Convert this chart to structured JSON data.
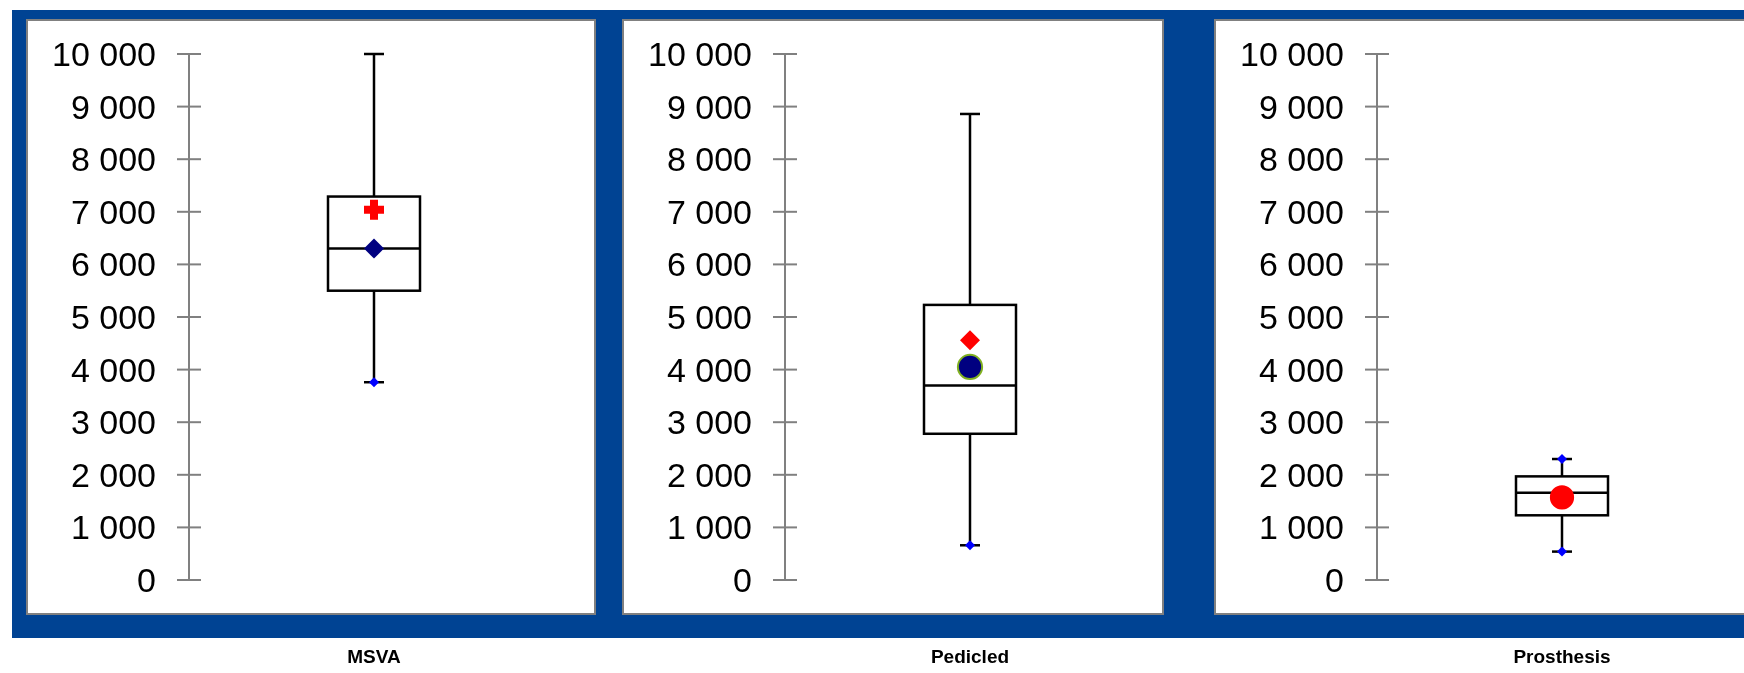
{
  "chart_data": [
    {
      "type": "box",
      "categories": [
        "MSVA"
      ],
      "boxes": [
        {
          "low": 3760,
          "q1": 5500,
          "median": 6300,
          "q3": 7290,
          "high": 10000
        }
      ],
      "ylim": [
        0,
        10000
      ],
      "yticks": [
        {
          "value": 0,
          "label": "0"
        },
        {
          "value": 1000,
          "label": "1 000"
        },
        {
          "value": 2000,
          "label": "2 000"
        },
        {
          "value": 3000,
          "label": "3 000"
        },
        {
          "value": 4000,
          "label": "4 000"
        },
        {
          "value": 5000,
          "label": "5 000"
        },
        {
          "value": 6000,
          "label": "6 000"
        },
        {
          "value": 7000,
          "label": "7 000"
        },
        {
          "value": 8000,
          "label": "8 000"
        },
        {
          "value": 9000,
          "label": "9 000"
        },
        {
          "value": 10000,
          "label": "10 000"
        }
      ],
      "series": [
        {
          "type": "scatter",
          "x": [
            "MSVA"
          ],
          "values": [
            7040
          ],
          "color": "#ff0000",
          "marker": "cross"
        },
        {
          "type": "scatter",
          "x": [
            "MSVA"
          ],
          "values": [
            6300
          ],
          "color": "#000080",
          "marker": "diamond"
        },
        {
          "type": "scatter",
          "x": [
            "MSVA"
          ],
          "values": [
            3760
          ],
          "color": "#0000ff",
          "marker": "diamond"
        }
      ]
    },
    {
      "type": "box",
      "categories": [
        "Pedicled"
      ],
      "boxes": [
        {
          "low": 660,
          "q1": 2780,
          "median": 3700,
          "q3": 5230,
          "high": 8860
        }
      ],
      "ylim": [
        0,
        10000
      ],
      "yticks": [
        {
          "value": 0,
          "label": "0"
        },
        {
          "value": 1000,
          "label": "1 000"
        },
        {
          "value": 2000,
          "label": "2 000"
        },
        {
          "value": 3000,
          "label": "3 000"
        },
        {
          "value": 4000,
          "label": "4 000"
        },
        {
          "value": 5000,
          "label": "5 000"
        },
        {
          "value": 6000,
          "label": "6 000"
        },
        {
          "value": 7000,
          "label": "7 000"
        },
        {
          "value": 8000,
          "label": "8 000"
        },
        {
          "value": 9000,
          "label": "9 000"
        },
        {
          "value": 10000,
          "label": "10 000"
        }
      ],
      "series": [
        {
          "type": "scatter",
          "x": [
            "Pedicled"
          ],
          "values": [
            4560
          ],
          "color": "#ff0000",
          "marker": "diamond"
        },
        {
          "type": "scatter",
          "x": [
            "Pedicled"
          ],
          "values": [
            4050
          ],
          "color": "#000080",
          "marker": "circle"
        },
        {
          "type": "scatter",
          "x": [
            "Pedicled"
          ],
          "values": [
            660
          ],
          "color": "#0000ff",
          "marker": "diamond"
        }
      ]
    },
    {
      "type": "box",
      "categories": [
        "Prosthesis"
      ],
      "boxes": [
        {
          "low": 540,
          "q1": 1230,
          "median": 1660,
          "q3": 1970,
          "high": 2300
        }
      ],
      "ylim": [
        0,
        10000
      ],
      "yticks": [
        {
          "value": 0,
          "label": "0"
        },
        {
          "value": 1000,
          "label": "1 000"
        },
        {
          "value": 2000,
          "label": "2 000"
        },
        {
          "value": 3000,
          "label": "3 000"
        },
        {
          "value": 4000,
          "label": "4 000"
        },
        {
          "value": 5000,
          "label": "5 000"
        },
        {
          "value": 6000,
          "label": "6 000"
        },
        {
          "value": 7000,
          "label": "7 000"
        },
        {
          "value": 8000,
          "label": "8 000"
        },
        {
          "value": 9000,
          "label": "9 000"
        },
        {
          "value": 10000,
          "label": "10 000"
        }
      ],
      "series": [
        {
          "type": "scatter",
          "x": [
            "Prosthesis",
            "Prosthesis"
          ],
          "values": [
            2300,
            540
          ],
          "color": "#0000ff",
          "marker": "diamond"
        },
        {
          "type": "scatter",
          "x": [
            "Prosthesis"
          ],
          "values": [
            1570
          ],
          "color": "#ff0000",
          "marker": "circle"
        }
      ]
    }
  ]
}
